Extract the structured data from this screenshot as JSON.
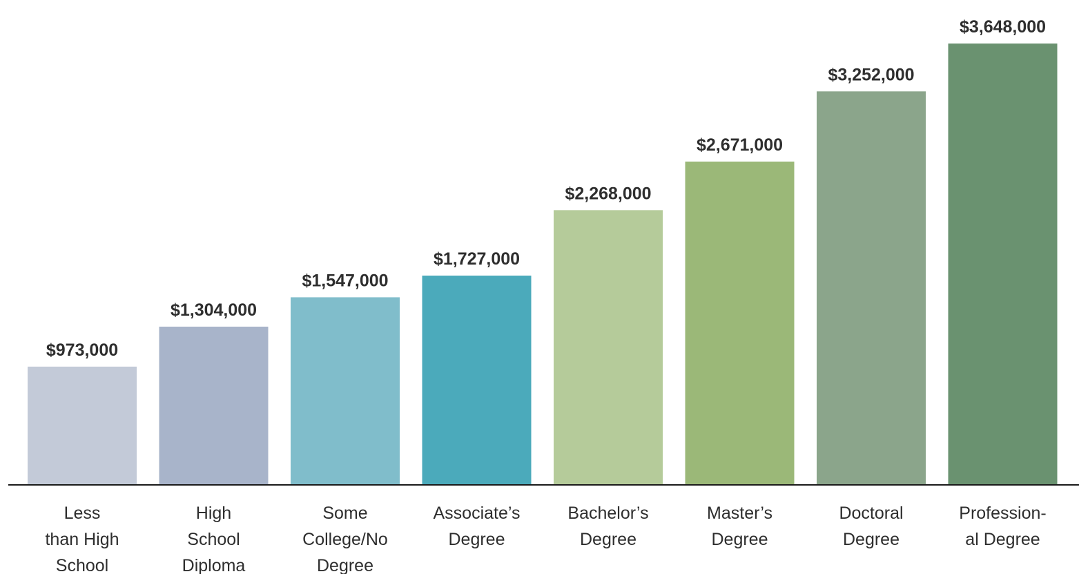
{
  "chart_data": {
    "type": "bar",
    "categories": [
      [
        "Less",
        "than High",
        "School"
      ],
      [
        "High",
        "School",
        "Diploma"
      ],
      [
        "Some",
        "College/No",
        "Degree"
      ],
      [
        "Associate’s",
        "Degree"
      ],
      [
        "Bachelor’s",
        "Degree"
      ],
      [
        "Master’s",
        "Degree"
      ],
      [
        "Doctoral",
        "Degree"
      ],
      [
        "Profession-",
        "al Degree"
      ]
    ],
    "values": [
      973000,
      1304000,
      1547000,
      1727000,
      2268000,
      2671000,
      3252000,
      3648000
    ],
    "value_labels": [
      "$973,000",
      "$1,304,000",
      "$1,547,000",
      "$1,727,000",
      "$2,268,000",
      "$2,671,000",
      "$3,252,000",
      "$3,648,000"
    ],
    "colors": [
      "#c3cad8",
      "#a8b4ca",
      "#80bdcb",
      "#4baabb",
      "#b5cb9a",
      "#9bb878",
      "#8ba58b",
      "#6a9270"
    ],
    "title": "",
    "xlabel": "",
    "ylabel": "",
    "ylim": [
      0,
      3648000
    ],
    "grid": false,
    "legend": "none"
  }
}
